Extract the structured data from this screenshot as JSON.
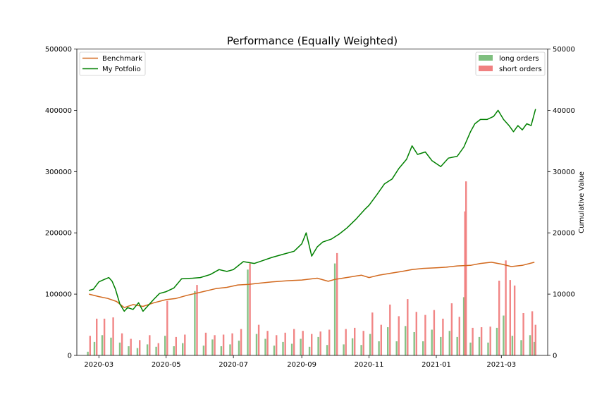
{
  "chart_data": {
    "type": "line+bar",
    "title": "Performance (Equally Weighted)",
    "y_left": {
      "label": "",
      "lim": [
        0,
        500000
      ],
      "ticks": [
        0,
        100000,
        200000,
        300000,
        400000,
        500000
      ]
    },
    "y_right": {
      "label": "Cumulative Value",
      "lim": [
        0,
        50000
      ],
      "ticks": [
        0,
        10000,
        20000,
        30000,
        40000,
        50000
      ]
    },
    "x": {
      "start": "2020-02-10",
      "end": "2021-04-12",
      "tick_labels": [
        "2020-03",
        "2020-05",
        "2020-07",
        "2020-09",
        "2020-11",
        "2021-01",
        "2021-03"
      ],
      "tick_dates": [
        "2020-03-01",
        "2020-05-01",
        "2020-07-01",
        "2020-09-01",
        "2020-11-01",
        "2021-01-01",
        "2021-03-01"
      ]
    },
    "lines": [
      {
        "name": "Benchmark",
        "color": "#d2691e",
        "axis": "left",
        "points": [
          [
            "2020-02-21",
            100000
          ],
          [
            "2020-03-01",
            96000
          ],
          [
            "2020-03-09",
            93000
          ],
          [
            "2020-03-17",
            88000
          ],
          [
            "2020-03-24",
            78000
          ],
          [
            "2020-04-01",
            83000
          ],
          [
            "2020-04-10",
            80000
          ],
          [
            "2020-04-20",
            86000
          ],
          [
            "2020-05-01",
            91000
          ],
          [
            "2020-05-10",
            93000
          ],
          [
            "2020-05-20",
            98000
          ],
          [
            "2020-06-01",
            103000
          ],
          [
            "2020-06-15",
            109000
          ],
          [
            "2020-06-25",
            111000
          ],
          [
            "2020-07-05",
            115000
          ],
          [
            "2020-07-15",
            116000
          ],
          [
            "2020-07-25",
            118000
          ],
          [
            "2020-08-05",
            120000
          ],
          [
            "2020-08-20",
            122000
          ],
          [
            "2020-09-01",
            123000
          ],
          [
            "2020-09-15",
            126000
          ],
          [
            "2020-09-25",
            121000
          ],
          [
            "2020-10-01",
            124000
          ],
          [
            "2020-10-15",
            128000
          ],
          [
            "2020-10-25",
            131000
          ],
          [
            "2020-11-01",
            127000
          ],
          [
            "2020-11-10",
            131000
          ],
          [
            "2020-11-20",
            134000
          ],
          [
            "2020-12-01",
            137000
          ],
          [
            "2020-12-10",
            140000
          ],
          [
            "2020-12-20",
            142000
          ],
          [
            "2021-01-01",
            143000
          ],
          [
            "2021-01-10",
            144000
          ],
          [
            "2021-01-20",
            146000
          ],
          [
            "2021-02-01",
            147000
          ],
          [
            "2021-02-10",
            150000
          ],
          [
            "2021-02-20",
            152000
          ],
          [
            "2021-03-01",
            149000
          ],
          [
            "2021-03-10",
            145000
          ],
          [
            "2021-03-20",
            147000
          ],
          [
            "2021-03-31",
            152000
          ]
        ]
      },
      {
        "name": "My Potfolio",
        "color": "#008000",
        "axis": "left",
        "points": [
          [
            "2020-02-21",
            106000
          ],
          [
            "2020-02-25",
            108000
          ],
          [
            "2020-03-01",
            120000
          ],
          [
            "2020-03-06",
            124000
          ],
          [
            "2020-03-10",
            127000
          ],
          [
            "2020-03-13",
            121000
          ],
          [
            "2020-03-16",
            108000
          ],
          [
            "2020-03-20",
            84000
          ],
          [
            "2020-03-24",
            72000
          ],
          [
            "2020-03-27",
            78000
          ],
          [
            "2020-04-01",
            75000
          ],
          [
            "2020-04-06",
            86000
          ],
          [
            "2020-04-10",
            72000
          ],
          [
            "2020-04-15",
            82000
          ],
          [
            "2020-04-20",
            92000
          ],
          [
            "2020-04-25",
            101000
          ],
          [
            "2020-05-01",
            104000
          ],
          [
            "2020-05-08",
            110000
          ],
          [
            "2020-05-15",
            125000
          ],
          [
            "2020-05-25",
            126000
          ],
          [
            "2020-06-01",
            127000
          ],
          [
            "2020-06-10",
            132000
          ],
          [
            "2020-06-18",
            140000
          ],
          [
            "2020-06-25",
            137000
          ],
          [
            "2020-07-01",
            140000
          ],
          [
            "2020-07-10",
            153000
          ],
          [
            "2020-07-20",
            150000
          ],
          [
            "2020-07-28",
            155000
          ],
          [
            "2020-08-05",
            160000
          ],
          [
            "2020-08-15",
            165000
          ],
          [
            "2020-08-25",
            170000
          ],
          [
            "2020-09-01",
            182000
          ],
          [
            "2020-09-05",
            200000
          ],
          [
            "2020-09-10",
            162000
          ],
          [
            "2020-09-15",
            177000
          ],
          [
            "2020-09-20",
            185000
          ],
          [
            "2020-09-28",
            190000
          ],
          [
            "2020-10-05",
            198000
          ],
          [
            "2020-10-12",
            208000
          ],
          [
            "2020-10-20",
            222000
          ],
          [
            "2020-10-28",
            238000
          ],
          [
            "2020-11-01",
            245000
          ],
          [
            "2020-11-08",
            262000
          ],
          [
            "2020-11-15",
            280000
          ],
          [
            "2020-11-22",
            288000
          ],
          [
            "2020-11-28",
            305000
          ],
          [
            "2020-12-05",
            320000
          ],
          [
            "2020-12-10",
            342000
          ],
          [
            "2020-12-15",
            328000
          ],
          [
            "2020-12-22",
            332000
          ],
          [
            "2020-12-28",
            318000
          ],
          [
            "2021-01-05",
            308000
          ],
          [
            "2021-01-12",
            322000
          ],
          [
            "2021-01-20",
            325000
          ],
          [
            "2021-01-26",
            340000
          ],
          [
            "2021-02-01",
            365000
          ],
          [
            "2021-02-05",
            378000
          ],
          [
            "2021-02-10",
            385000
          ],
          [
            "2021-02-16",
            385000
          ],
          [
            "2021-02-22",
            390000
          ],
          [
            "2021-02-26",
            400000
          ],
          [
            "2021-03-03",
            385000
          ],
          [
            "2021-03-08",
            375000
          ],
          [
            "2021-03-12",
            365000
          ],
          [
            "2021-03-16",
            375000
          ],
          [
            "2021-03-20",
            368000
          ],
          [
            "2021-03-24",
            378000
          ],
          [
            "2021-03-28",
            375000
          ],
          [
            "2021-04-01",
            402000
          ]
        ]
      }
    ],
    "bars": [
      {
        "name": "long orders",
        "color": "#7fbf7f",
        "axis": "right",
        "values": [
          [
            "2020-02-20",
            600
          ],
          [
            "2020-02-26",
            2200
          ],
          [
            "2020-03-04",
            3300
          ],
          [
            "2020-03-12",
            2900
          ],
          [
            "2020-03-20",
            2100
          ],
          [
            "2020-03-28",
            1500
          ],
          [
            "2020-04-05",
            1200
          ],
          [
            "2020-04-14",
            1800
          ],
          [
            "2020-04-22",
            1400
          ],
          [
            "2020-04-30",
            3200
          ],
          [
            "2020-05-08",
            1500
          ],
          [
            "2020-05-16",
            2000
          ],
          [
            "2020-05-27",
            10500
          ],
          [
            "2020-06-04",
            1600
          ],
          [
            "2020-06-12",
            2600
          ],
          [
            "2020-06-20",
            1500
          ],
          [
            "2020-06-28",
            1800
          ],
          [
            "2020-07-06",
            2400
          ],
          [
            "2020-07-14",
            14000
          ],
          [
            "2020-07-22",
            3500
          ],
          [
            "2020-07-30",
            2700
          ],
          [
            "2020-08-07",
            1600
          ],
          [
            "2020-08-15",
            2200
          ],
          [
            "2020-08-23",
            1900
          ],
          [
            "2020-08-31",
            2700
          ],
          [
            "2020-09-08",
            1400
          ],
          [
            "2020-09-16",
            3000
          ],
          [
            "2020-09-24",
            1700
          ],
          [
            "2020-10-01",
            15000
          ],
          [
            "2020-10-09",
            1800
          ],
          [
            "2020-10-17",
            2800
          ],
          [
            "2020-10-25",
            1700
          ],
          [
            "2020-11-02",
            3500
          ],
          [
            "2020-11-10",
            2300
          ],
          [
            "2020-11-18",
            4600
          ],
          [
            "2020-11-26",
            2300
          ],
          [
            "2020-12-04",
            4800
          ],
          [
            "2020-12-12",
            3800
          ],
          [
            "2020-12-20",
            2300
          ],
          [
            "2020-12-28",
            4200
          ],
          [
            "2021-01-05",
            3000
          ],
          [
            "2021-01-13",
            4000
          ],
          [
            "2021-01-20",
            3000
          ],
          [
            "2021-01-26",
            9500
          ],
          [
            "2021-02-01",
            2100
          ],
          [
            "2021-02-09",
            3000
          ],
          [
            "2021-02-17",
            2100
          ],
          [
            "2021-02-25",
            4500
          ],
          [
            "2021-03-03",
            6500
          ],
          [
            "2021-03-11",
            3200
          ],
          [
            "2021-03-19",
            2500
          ],
          [
            "2021-03-27",
            3300
          ],
          [
            "2021-03-31",
            2200
          ]
        ]
      },
      {
        "name": "short orders",
        "color": "#f08080",
        "axis": "right",
        "values": [
          [
            "2020-02-22",
            3200
          ],
          [
            "2020-02-28",
            6000
          ],
          [
            "2020-03-06",
            6000
          ],
          [
            "2020-03-14",
            6200
          ],
          [
            "2020-03-22",
            3600
          ],
          [
            "2020-03-30",
            2700
          ],
          [
            "2020-04-07",
            2500
          ],
          [
            "2020-04-16",
            3300
          ],
          [
            "2020-04-24",
            2000
          ],
          [
            "2020-05-02",
            8900
          ],
          [
            "2020-05-10",
            3000
          ],
          [
            "2020-05-18",
            3400
          ],
          [
            "2020-05-29",
            11500
          ],
          [
            "2020-06-06",
            3700
          ],
          [
            "2020-06-14",
            3300
          ],
          [
            "2020-06-22",
            3400
          ],
          [
            "2020-06-30",
            3600
          ],
          [
            "2020-07-08",
            4300
          ],
          [
            "2020-07-16",
            15000
          ],
          [
            "2020-07-24",
            5000
          ],
          [
            "2020-08-01",
            4000
          ],
          [
            "2020-08-09",
            3300
          ],
          [
            "2020-08-17",
            3700
          ],
          [
            "2020-08-25",
            4300
          ],
          [
            "2020-09-02",
            4000
          ],
          [
            "2020-09-10",
            3500
          ],
          [
            "2020-09-18",
            3900
          ],
          [
            "2020-09-26",
            4200
          ],
          [
            "2020-10-03",
            16700
          ],
          [
            "2020-10-11",
            4300
          ],
          [
            "2020-10-19",
            4500
          ],
          [
            "2020-10-27",
            4000
          ],
          [
            "2020-11-04",
            7000
          ],
          [
            "2020-11-12",
            5000
          ],
          [
            "2020-11-20",
            8300
          ],
          [
            "2020-11-28",
            6400
          ],
          [
            "2020-12-06",
            9200
          ],
          [
            "2020-12-14",
            7100
          ],
          [
            "2020-12-22",
            6600
          ],
          [
            "2020-12-30",
            7400
          ],
          [
            "2021-01-07",
            6000
          ],
          [
            "2021-01-15",
            8500
          ],
          [
            "2021-01-22",
            6300
          ],
          [
            "2021-01-27",
            23500
          ],
          [
            "2021-01-28",
            28400
          ],
          [
            "2021-02-03",
            4500
          ],
          [
            "2021-02-11",
            4600
          ],
          [
            "2021-02-19",
            4700
          ],
          [
            "2021-02-27",
            12200
          ],
          [
            "2021-03-05",
            15500
          ],
          [
            "2021-03-09",
            12300
          ],
          [
            "2021-03-13",
            11400
          ],
          [
            "2021-03-21",
            6900
          ],
          [
            "2021-03-29",
            7200
          ],
          [
            "2021-04-01",
            5000
          ]
        ]
      }
    ],
    "legends": {
      "left": {
        "placement": "upper-left",
        "entries": [
          "Benchmark",
          "My Potfolio"
        ]
      },
      "right": {
        "placement": "upper-right",
        "entries": [
          "long orders",
          "short orders"
        ]
      }
    },
    "grid": false
  }
}
